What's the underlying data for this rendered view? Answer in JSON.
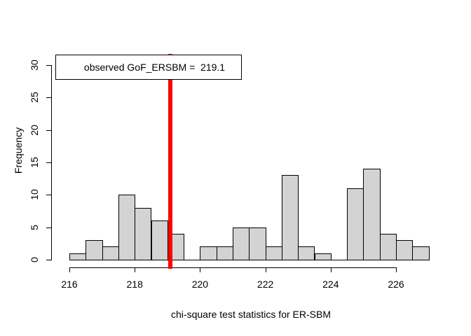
{
  "chart_data": {
    "type": "bar",
    "subtype": "histogram",
    "title": "",
    "xlabel": "chi-square test statistics for ER-SBM",
    "ylabel": "Frequency",
    "bin_start": 216,
    "bin_width": 0.5,
    "bin_counts": [
      1,
      3,
      2,
      10,
      8,
      6,
      4,
      0,
      2,
      2,
      5,
      5,
      2,
      13,
      2,
      1,
      0,
      11,
      14,
      4,
      3,
      2
    ],
    "total_count": 100,
    "x_ticks": [
      216,
      218,
      220,
      222,
      224,
      226
    ],
    "y_ticks": [
      0,
      5,
      10,
      15,
      20,
      25,
      30
    ],
    "xlim": [
      216,
      227
    ],
    "ylim": [
      0,
      30
    ],
    "observed_value": 219.1,
    "observed_line_color": "#ff0000",
    "legend_text": "observed GoF_ERSBM =  219.1",
    "legend_position": "topleft",
    "grid": false,
    "colors": {
      "bar_fill": "#d3d3d3",
      "bar_border": "#000000",
      "observed_line": "#ff0000",
      "axis": "#000000",
      "text": "#000000",
      "legend_background": "#ffffff",
      "legend_border": "#000000",
      "background": "#ffffff"
    }
  }
}
